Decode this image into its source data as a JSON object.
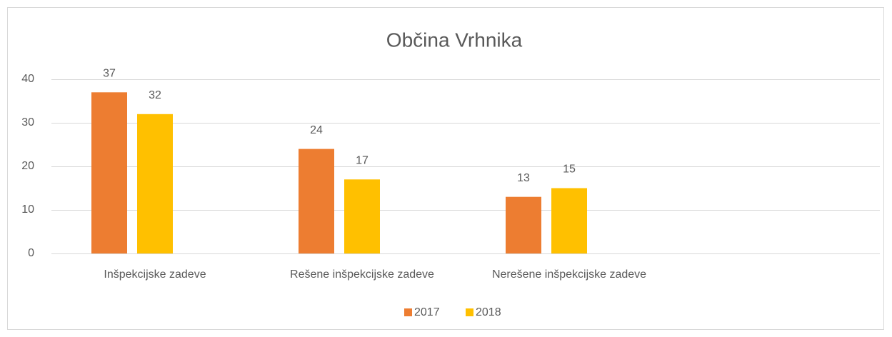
{
  "chart_data": {
    "type": "bar",
    "title": "Občina Vrhnika",
    "categories": [
      "Inšpekcijske zadeve",
      "Rešene inšpekcijske zadeve",
      "Nerešene inšpekcijske zadeve",
      null
    ],
    "series": [
      {
        "name": "2017",
        "color": "#ed7d31",
        "values": [
          37,
          24,
          13,
          null
        ]
      },
      {
        "name": "2018",
        "color": "#ffc000",
        "values": [
          32,
          17,
          15,
          null
        ]
      }
    ],
    "ylim": [
      0,
      40
    ],
    "yticks": [
      0,
      10,
      20,
      30,
      40
    ],
    "grid": true,
    "legend": "bottom"
  }
}
